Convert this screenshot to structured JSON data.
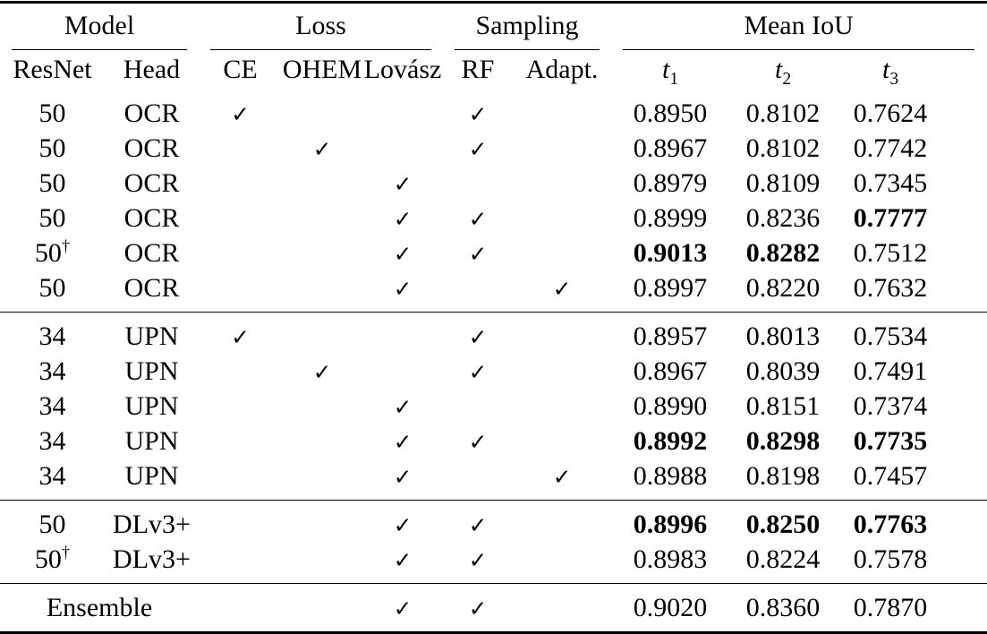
{
  "page": {
    "background": "#ffffff",
    "text_color": "#000000"
  },
  "symbols": {
    "check": "✓",
    "dagger": "†"
  },
  "table": {
    "groups": [
      {
        "label": "Model",
        "span": 2
      },
      {
        "label": "Loss",
        "span": 3
      },
      {
        "label": "Sampling",
        "span": 2
      },
      {
        "label": "Mean IoU",
        "span": 3
      }
    ],
    "columns": [
      "ResNet",
      "Head",
      "CE",
      "OHEM",
      "Lovász",
      "RF",
      "Adapt."
    ],
    "metric_columns": [
      {
        "base": "t",
        "sub": "1"
      },
      {
        "base": "t",
        "sub": "2"
      },
      {
        "base": "t",
        "sub": "3"
      }
    ],
    "check_keys": [
      "ce",
      "ohem",
      "lovasz",
      "rf",
      "adapt"
    ],
    "sections": [
      {
        "name": "resnet50-ocr",
        "rows": [
          {
            "resnet": "50",
            "dagger": false,
            "head": "OCR",
            "checks": [
              "ce",
              "rf"
            ],
            "t1": "0.8950",
            "t2": "0.8102",
            "t3": "0.7624",
            "bold": []
          },
          {
            "resnet": "50",
            "dagger": false,
            "head": "OCR",
            "checks": [
              "ohem",
              "rf"
            ],
            "t1": "0.8967",
            "t2": "0.8102",
            "t3": "0.7742",
            "bold": []
          },
          {
            "resnet": "50",
            "dagger": false,
            "head": "OCR",
            "checks": [
              "lovasz"
            ],
            "t1": "0.8979",
            "t2": "0.8109",
            "t3": "0.7345",
            "bold": []
          },
          {
            "resnet": "50",
            "dagger": false,
            "head": "OCR",
            "checks": [
              "lovasz",
              "rf"
            ],
            "t1": "0.8999",
            "t2": "0.8236",
            "t3": "0.7777",
            "bold": [
              "t3"
            ]
          },
          {
            "resnet": "50",
            "dagger": true,
            "head": "OCR",
            "checks": [
              "lovasz",
              "rf"
            ],
            "t1": "0.9013",
            "t2": "0.8282",
            "t3": "0.7512",
            "bold": [
              "t1",
              "t2"
            ]
          },
          {
            "resnet": "50",
            "dagger": false,
            "head": "OCR",
            "checks": [
              "lovasz",
              "adapt"
            ],
            "t1": "0.8997",
            "t2": "0.8220",
            "t3": "0.7632",
            "bold": []
          }
        ]
      },
      {
        "name": "resnet34-upn",
        "rows": [
          {
            "resnet": "34",
            "dagger": false,
            "head": "UPN",
            "checks": [
              "ce",
              "rf"
            ],
            "t1": "0.8957",
            "t2": "0.8013",
            "t3": "0.7534",
            "bold": []
          },
          {
            "resnet": "34",
            "dagger": false,
            "head": "UPN",
            "checks": [
              "ohem",
              "rf"
            ],
            "t1": "0.8967",
            "t2": "0.8039",
            "t3": "0.7491",
            "bold": []
          },
          {
            "resnet": "34",
            "dagger": false,
            "head": "UPN",
            "checks": [
              "lovasz"
            ],
            "t1": "0.8990",
            "t2": "0.8151",
            "t3": "0.7374",
            "bold": []
          },
          {
            "resnet": "34",
            "dagger": false,
            "head": "UPN",
            "checks": [
              "lovasz",
              "rf"
            ],
            "t1": "0.8992",
            "t2": "0.8298",
            "t3": "0.7735",
            "bold": [
              "t1",
              "t2",
              "t3"
            ]
          },
          {
            "resnet": "34",
            "dagger": false,
            "head": "UPN",
            "checks": [
              "lovasz",
              "adapt"
            ],
            "t1": "0.8988",
            "t2": "0.8198",
            "t3": "0.7457",
            "bold": []
          }
        ]
      },
      {
        "name": "resnet50-dlv3plus",
        "rows": [
          {
            "resnet": "50",
            "dagger": false,
            "head": "DLv3+",
            "checks": [
              "lovasz",
              "rf"
            ],
            "t1": "0.8996",
            "t2": "0.8250",
            "t3": "0.7763",
            "bold": [
              "t1",
              "t2",
              "t3"
            ]
          },
          {
            "resnet": "50",
            "dagger": true,
            "head": "DLv3+",
            "checks": [
              "lovasz",
              "rf"
            ],
            "t1": "0.8983",
            "t2": "0.8224",
            "t3": "0.7578",
            "bold": []
          }
        ]
      },
      {
        "name": "ensemble",
        "rows": [
          {
            "label": "Ensemble",
            "dagger": false,
            "checks": [
              "lovasz",
              "rf"
            ],
            "t1": "0.9020",
            "t2": "0.8360",
            "t3": "0.7870",
            "bold": []
          }
        ]
      }
    ]
  }
}
